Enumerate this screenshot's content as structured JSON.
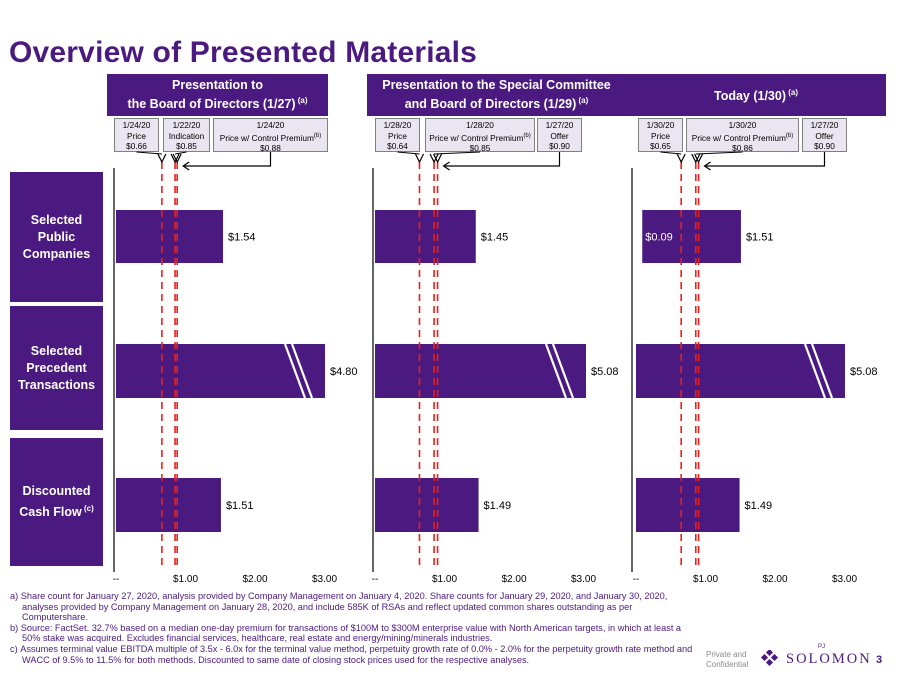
{
  "title": "Overview of Presented Materials",
  "panels": [
    {
      "header_l1": "Presentation to",
      "header_l2": "the Board of Directors (1/27)",
      "header_sup": "(a)"
    },
    {
      "header_l1": "Presentation to the Special Committee",
      "header_l2": "and Board of Directors (1/29)",
      "header_sup": "(a)"
    },
    {
      "header_l1": "Today (1/30)",
      "header_l2": "",
      "header_sup": "(a)"
    }
  ],
  "boxes": [
    [
      {
        "date": "1/24/20",
        "label": "Price",
        "value": "$0.66",
        "sup": ""
      },
      {
        "date": "1/22/20",
        "label": "Indication",
        "value": "$0.85",
        "sup": ""
      },
      {
        "date": "1/24/20",
        "label": "Price w/ Control Premium",
        "value": "$0.88",
        "sup": "(b)"
      }
    ],
    [
      {
        "date": "1/28/20",
        "label": "Price",
        "value": "$0.64",
        "sup": ""
      },
      {
        "date": "1/28/20",
        "label": "Price w/ Control Premium",
        "value": "$0.85",
        "sup": "(b)"
      },
      {
        "date": "1/27/20",
        "label": "Offer",
        "value": "$0.90",
        "sup": ""
      }
    ],
    [
      {
        "date": "1/30/20",
        "label": "Price",
        "value": "$0.65",
        "sup": ""
      },
      {
        "date": "1/30/20",
        "label": "Price w/ Control Premium",
        "value": "$0.86",
        "sup": "(b)"
      },
      {
        "date": "1/27/20",
        "label": "Offer",
        "value": "$0.90",
        "sup": ""
      }
    ]
  ],
  "row_labels": [
    {
      "lines": [
        "Selected",
        "Public",
        "Companies"
      ],
      "sup": ""
    },
    {
      "lines": [
        "Selected",
        "Precedent",
        "Transactions"
      ],
      "sup": ""
    },
    {
      "lines": [
        "Discounted",
        "Cash Flow"
      ],
      "sup": "(c)"
    }
  ],
  "chart_data": {
    "type": "bar",
    "orientation": "horizontal",
    "categories": [
      "Selected Public Companies",
      "Selected Precedent Transactions",
      "Discounted Cash Flow"
    ],
    "xlim": [
      0,
      3.0
    ],
    "x_ticks": [
      "--",
      "$1.00",
      "$2.00",
      "$3.00"
    ],
    "x_tick_values": [
      0,
      1,
      2,
      3
    ],
    "bar_color": "#4b1a80",
    "reference_line_color": "#e8201c",
    "panels": [
      {
        "ref_lines": [
          0.66,
          0.85,
          0.88
        ],
        "bars": [
          {
            "low": 0,
            "high": 1.54,
            "label": "$1.54",
            "broken": false,
            "low_label": ""
          },
          {
            "low": 0,
            "high": 4.8,
            "label": "$4.80",
            "broken": true,
            "low_label": ""
          },
          {
            "low": 0,
            "high": 1.51,
            "label": "$1.51",
            "broken": false,
            "low_label": ""
          }
        ]
      },
      {
        "ref_lines": [
          0.64,
          0.85,
          0.9
        ],
        "bars": [
          {
            "low": 0,
            "high": 1.45,
            "label": "$1.45",
            "broken": false,
            "low_label": ""
          },
          {
            "low": 0,
            "high": 5.08,
            "label": "$5.08",
            "broken": true,
            "low_label": ""
          },
          {
            "low": 0,
            "high": 1.49,
            "label": "$1.49",
            "broken": false,
            "low_label": ""
          }
        ]
      },
      {
        "ref_lines": [
          0.65,
          0.86,
          0.9
        ],
        "bars": [
          {
            "low": 0.09,
            "high": 1.51,
            "label": "$1.51",
            "broken": false,
            "low_label": "$0.09"
          },
          {
            "low": 0,
            "high": 5.08,
            "label": "$5.08",
            "broken": true,
            "low_label": ""
          },
          {
            "low": 0,
            "high": 1.49,
            "label": "$1.49",
            "broken": false,
            "low_label": ""
          }
        ]
      }
    ]
  },
  "footnotes": [
    "a) Share count for January 27, 2020, analysis provided by Company Management on January 4, 2020. Share counts for January 29, 2020, and January 30, 2020, analyses provided by Company Management on January 28, 2020, and include 585K of RSAs and reflect updated common shares outstanding as per Computershare.",
    "b) Source: FactSet. 32.7% based on a median one-day premium for transactions of $100M to $300M enterprise value with North American targets, in which at least a 50% stake was acquired. Excludes financial services, healthcare, real estate and energy/mining/minerals industries.",
    "c) Assumes terminal value EBITDA multiple of 3.5x - 6.0x for the terminal value method, perpetuity growth rate of 0.0% - 2.0% for the perpetuity growth rate method and WACC of 9.5% to 11.5% for both methods. Discounted to same date of closing stock prices used for the respective analyses."
  ],
  "brand": {
    "note_l1": "Private and",
    "note_l2": "Confidential",
    "name": "SOLOMON",
    "pj": "PJ",
    "page_number": "3"
  }
}
